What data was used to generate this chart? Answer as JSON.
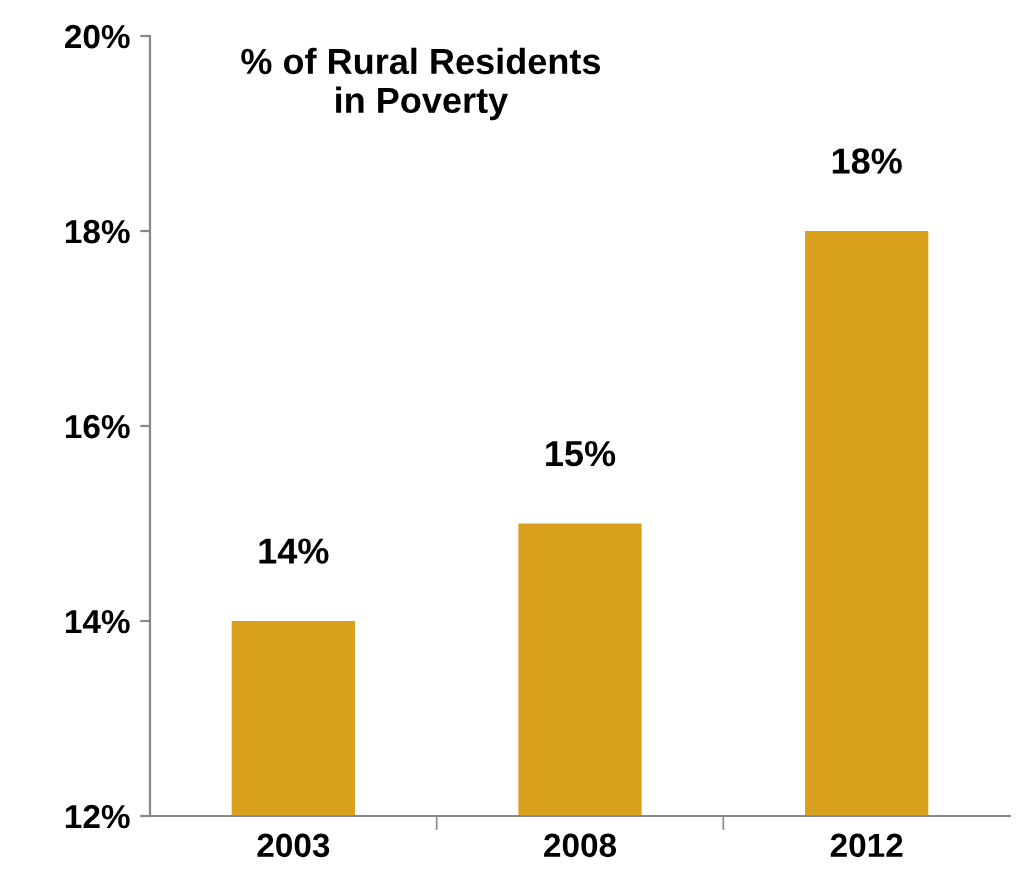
{
  "chart_data": {
    "type": "bar",
    "title": "% of Rural Residents\nin Poverty",
    "categories": [
      "2003",
      "2008",
      "2012"
    ],
    "values": [
      14,
      15,
      18
    ],
    "color": "#d9a01e",
    "value_labels": [
      "14%",
      "15%",
      "18%"
    ],
    "ylim": [
      12,
      20
    ],
    "yticks": [
      {
        "value": 12,
        "label": "12%"
      },
      {
        "value": 14,
        "label": "14%"
      },
      {
        "value": 16,
        "label": "16%"
      },
      {
        "value": 18,
        "label": "18%"
      },
      {
        "value": 20,
        "label": "20%"
      }
    ],
    "grid": false
  }
}
